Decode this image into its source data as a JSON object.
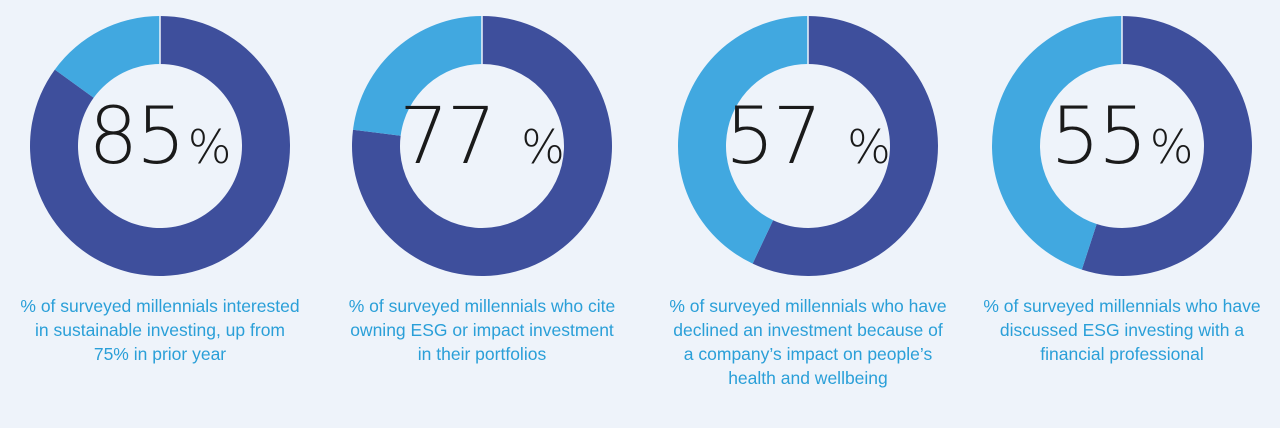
{
  "chart_data": [
    {
      "type": "pie",
      "values": [
        85,
        15
      ],
      "display_value": "85",
      "unit": "%",
      "caption": "% of surveyed millennials interested in sustainable investing, up from 75% in prior year"
    },
    {
      "type": "pie",
      "values": [
        77,
        23
      ],
      "display_value": "77",
      "unit": "%",
      "caption": "% of surveyed millennials who cite owning ESG or impact investment in their portfolios"
    },
    {
      "type": "pie",
      "values": [
        57,
        43
      ],
      "display_value": "57",
      "unit": "%",
      "caption": "% of surveyed millennials who have declined an investment because of a company’s impact on people’s health and wellbeing"
    },
    {
      "type": "pie",
      "values": [
        55,
        45
      ],
      "display_value": "55",
      "unit": "%",
      "caption": "% of surveyed millennials who have discussed ESG investing with a financial professional"
    }
  ],
  "colors": {
    "primary": "#3e4f9c",
    "secondary": "#41a8e0",
    "caption": "#2a9fd8"
  }
}
